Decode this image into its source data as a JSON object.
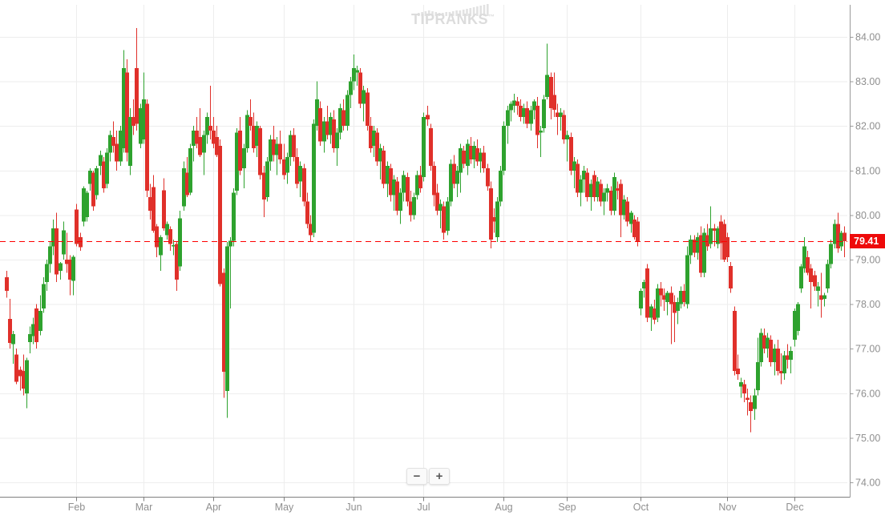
{
  "brand": {
    "name": "TIPRANKS",
    "trademark": "™"
  },
  "controls": {
    "zoom_out_label": "−",
    "zoom_in_label": "+"
  },
  "price_tag": {
    "value": "79.41"
  },
  "colors": {
    "up": "#2ea22e",
    "down": "#e0302a",
    "dashed_line": "#fe0000",
    "tag_bg": "#ee0a0a",
    "grid": "#ededed",
    "axis_bottom": "#808080",
    "axis_right": "#9a9a9a",
    "label": "#8f8f8f",
    "logo": "#e2e2e2"
  },
  "chart_data": {
    "type": "candlestick",
    "title": "",
    "xlabel": "",
    "ylabel": "",
    "ylim": [
      74,
      84
    ],
    "grid": true,
    "legend": "none",
    "y_ticks": [
      84,
      83,
      82,
      81,
      80,
      79,
      78,
      77,
      76,
      75,
      74
    ],
    "x_ticks": [
      "Feb",
      "Mar",
      "Apr",
      "May",
      "Jun",
      "Jul",
      "Aug",
      "Sep",
      "Oct",
      "Nov",
      "Dec"
    ],
    "x_tick_indices": [
      21,
      41,
      62,
      83,
      104,
      125,
      149,
      168,
      190,
      216,
      236
    ],
    "current_price": 79.41,
    "series_format": "[open, high, low, close]",
    "candles": [
      [
        78.6,
        78.75,
        78.15,
        78.3
      ],
      [
        77.67,
        78.12,
        77.0,
        77.13
      ],
      [
        77.1,
        77.4,
        76.66,
        77.33
      ],
      [
        76.87,
        77.0,
        76.2,
        76.26
      ],
      [
        76.53,
        76.6,
        76.06,
        76.38
      ],
      [
        76.5,
        76.87,
        75.95,
        76.1
      ],
      [
        76.0,
        76.8,
        75.66,
        76.74
      ],
      [
        77.15,
        77.5,
        76.9,
        77.33
      ],
      [
        77.28,
        77.7,
        77.1,
        77.55
      ],
      [
        77.9,
        78.0,
        77.0,
        77.15
      ],
      [
        77.4,
        78.2,
        77.3,
        77.85
      ],
      [
        77.9,
        78.6,
        77.8,
        78.45
      ],
      [
        78.5,
        79.0,
        78.3,
        78.9
      ],
      [
        78.9,
        79.4,
        78.7,
        79.3
      ],
      [
        79.3,
        79.9,
        79.1,
        79.7
      ],
      [
        79.7,
        80.05,
        78.5,
        78.67
      ],
      [
        78.75,
        78.95,
        78.55,
        78.92
      ],
      [
        79.12,
        79.85,
        79.0,
        79.66
      ],
      [
        79.0,
        79.6,
        78.7,
        78.9
      ],
      [
        79.0,
        79.1,
        78.2,
        78.55
      ],
      [
        78.52,
        79.1,
        78.2,
        79.06
      ],
      [
        80.12,
        80.25,
        79.3,
        79.35
      ],
      [
        79.5,
        79.6,
        79.2,
        79.28
      ],
      [
        79.85,
        80.65,
        79.75,
        80.6
      ],
      [
        79.95,
        80.55,
        79.85,
        80.5
      ],
      [
        80.7,
        81.05,
        80.55,
        81.0
      ],
      [
        80.95,
        81.0,
        80.1,
        80.2
      ],
      [
        80.45,
        81.1,
        80.35,
        81.05
      ],
      [
        81.1,
        81.45,
        80.9,
        81.35
      ],
      [
        81.2,
        81.3,
        80.5,
        80.6
      ],
      [
        80.7,
        81.5,
        80.6,
        81.4
      ],
      [
        81.4,
        81.9,
        81.2,
        81.8
      ],
      [
        81.75,
        82.1,
        81.4,
        81.55
      ],
      [
        81.6,
        81.9,
        81.0,
        81.2
      ],
      [
        81.2,
        82.0,
        81.1,
        81.9
      ],
      [
        81.5,
        83.7,
        81.4,
        83.3
      ],
      [
        83.2,
        83.5,
        81.2,
        81.4
      ],
      [
        81.1,
        82.4,
        80.9,
        82.2
      ],
      [
        82.2,
        82.6,
        81.8,
        82.0
      ],
      [
        83.3,
        84.2,
        81.9,
        82.05
      ],
      [
        81.6,
        82.5,
        81.5,
        82.4
      ],
      [
        81.7,
        83.2,
        81.6,
        82.6
      ],
      [
        82.5,
        82.6,
        80.4,
        80.55
      ],
      [
        80.4,
        80.7,
        79.9,
        80.1
      ],
      [
        80.63,
        80.9,
        79.6,
        79.65
      ],
      [
        79.75,
        79.8,
        79.05,
        79.28
      ],
      [
        79.1,
        79.55,
        78.75,
        79.5
      ],
      [
        80.56,
        80.83,
        79.65,
        79.7
      ],
      [
        79.55,
        79.85,
        79.45,
        79.8
      ],
      [
        79.68,
        79.75,
        79.2,
        79.35
      ],
      [
        79.3,
        79.45,
        79.1,
        79.32
      ],
      [
        79.35,
        79.4,
        78.3,
        78.55
      ],
      [
        78.85,
        80.1,
        78.75,
        79.93
      ],
      [
        80.2,
        81.2,
        80.1,
        81.05
      ],
      [
        80.95,
        81.3,
        80.4,
        80.45
      ],
      [
        80.5,
        81.6,
        80.45,
        81.5
      ],
      [
        81.55,
        82.0,
        81.2,
        81.9
      ],
      [
        81.9,
        82.2,
        81.5,
        81.6
      ],
      [
        81.75,
        82.4,
        81.3,
        81.35
      ],
      [
        81.4,
        81.9,
        80.9,
        81.8
      ],
      [
        81.8,
        82.3,
        81.6,
        82.2
      ],
      [
        82.0,
        82.9,
        81.7,
        81.9
      ],
      [
        81.9,
        82.2,
        81.5,
        81.6
      ],
      [
        81.75,
        82.0,
        81.3,
        81.35
      ],
      [
        81.55,
        81.7,
        78.4,
        78.45
      ],
      [
        78.7,
        78.8,
        75.9,
        76.48
      ],
      [
        76.05,
        79.4,
        75.45,
        79.3
      ],
      [
        79.3,
        79.5,
        77.9,
        79.42
      ],
      [
        79.42,
        80.6,
        79.3,
        80.5
      ],
      [
        80.55,
        81.95,
        80.45,
        81.85
      ],
      [
        81.9,
        82.2,
        80.9,
        81.0
      ],
      [
        81.05,
        81.6,
        80.6,
        81.5
      ],
      [
        81.5,
        82.35,
        81.4,
        82.25
      ],
      [
        82.2,
        82.6,
        81.9,
        82.0
      ],
      [
        82.0,
        82.3,
        81.4,
        81.5
      ],
      [
        81.55,
        82.1,
        81.3,
        82.0
      ],
      [
        81.95,
        82.0,
        80.8,
        80.9
      ],
      [
        80.95,
        81.1,
        79.95,
        80.35
      ],
      [
        80.4,
        81.3,
        80.3,
        81.2
      ],
      [
        81.2,
        81.8,
        81.0,
        81.7
      ],
      [
        81.7,
        82.0,
        81.2,
        81.35
      ],
      [
        81.35,
        81.75,
        80.9,
        81.6
      ],
      [
        81.6,
        81.9,
        81.15,
        81.25
      ],
      [
        81.25,
        81.6,
        80.8,
        80.9
      ],
      [
        80.95,
        81.4,
        80.7,
        81.3
      ],
      [
        81.3,
        81.9,
        81.1,
        81.8
      ],
      [
        81.8,
        81.95,
        81.2,
        81.3
      ],
      [
        81.3,
        81.5,
        80.6,
        80.7
      ],
      [
        80.75,
        81.2,
        80.4,
        81.1
      ],
      [
        81.05,
        81.15,
        80.2,
        80.3
      ],
      [
        80.3,
        80.5,
        79.7,
        79.8
      ],
      [
        79.8,
        80.0,
        79.4,
        79.55
      ],
      [
        79.6,
        82.15,
        79.5,
        82.05
      ],
      [
        82.0,
        83.0,
        81.9,
        82.6
      ],
      [
        82.4,
        82.55,
        81.55,
        81.65
      ],
      [
        81.65,
        82.2,
        81.4,
        82.1
      ],
      [
        82.1,
        82.45,
        81.7,
        81.8
      ],
      [
        81.8,
        82.3,
        81.6,
        82.2
      ],
      [
        82.15,
        82.35,
        81.4,
        81.5
      ],
      [
        81.5,
        81.95,
        81.1,
        81.85
      ],
      [
        81.85,
        82.5,
        81.7,
        82.4
      ],
      [
        82.35,
        82.6,
        81.9,
        82.0
      ],
      [
        82.0,
        82.8,
        81.9,
        82.7
      ],
      [
        82.7,
        83.1,
        82.4,
        83.0
      ],
      [
        83.0,
        83.6,
        82.8,
        83.3
      ],
      [
        83.2,
        83.35,
        82.9,
        83.25
      ],
      [
        83.2,
        83.3,
        82.4,
        82.5
      ],
      [
        82.5,
        82.9,
        82.1,
        82.8
      ],
      [
        82.75,
        82.85,
        81.9,
        82.0
      ],
      [
        82.0,
        82.2,
        81.4,
        81.5
      ],
      [
        81.55,
        82.0,
        81.3,
        81.9
      ],
      [
        81.85,
        81.95,
        81.1,
        81.2
      ],
      [
        81.2,
        81.6,
        80.8,
        81.5
      ],
      [
        81.45,
        81.55,
        80.6,
        80.7
      ],
      [
        80.7,
        81.2,
        80.4,
        81.1
      ],
      [
        81.05,
        81.15,
        80.3,
        80.45
      ],
      [
        80.45,
        80.9,
        80.1,
        80.8
      ],
      [
        80.75,
        80.85,
        80.0,
        80.1
      ],
      [
        80.1,
        80.6,
        79.8,
        80.5
      ],
      [
        80.5,
        81.0,
        80.3,
        80.9
      ],
      [
        80.85,
        80.95,
        80.2,
        80.3
      ],
      [
        80.3,
        80.55,
        79.85,
        80.0
      ],
      [
        80.0,
        80.5,
        79.9,
        80.4
      ],
      [
        80.45,
        81.0,
        80.35,
        80.9
      ],
      [
        80.9,
        81.1,
        80.5,
        80.6
      ],
      [
        80.85,
        82.3,
        80.75,
        82.2
      ],
      [
        82.25,
        82.45,
        82.0,
        82.15
      ],
      [
        81.95,
        82.05,
        81.0,
        81.1
      ],
      [
        81.1,
        81.2,
        80.2,
        80.45
      ],
      [
        80.5,
        80.7,
        80.0,
        80.1
      ],
      [
        80.1,
        80.35,
        79.7,
        80.25
      ],
      [
        80.2,
        80.3,
        79.45,
        79.6
      ],
      [
        79.65,
        80.4,
        79.55,
        80.3
      ],
      [
        80.3,
        81.25,
        80.2,
        81.15
      ],
      [
        81.15,
        81.35,
        80.6,
        80.7
      ],
      [
        80.7,
        81.1,
        80.4,
        81.0
      ],
      [
        80.95,
        81.6,
        80.5,
        81.5
      ],
      [
        81.45,
        81.55,
        81.05,
        81.15
      ],
      [
        81.1,
        81.7,
        80.9,
        81.6
      ],
      [
        81.55,
        81.75,
        81.15,
        81.25
      ],
      [
        81.25,
        81.65,
        81.05,
        81.55
      ],
      [
        81.5,
        81.7,
        81.1,
        81.2
      ],
      [
        81.2,
        81.5,
        80.95,
        81.4
      ],
      [
        81.4,
        81.55,
        80.95,
        81.05
      ],
      [
        81.05,
        81.15,
        80.55,
        80.65
      ],
      [
        80.6,
        80.75,
        79.25,
        79.45
      ],
      [
        79.95,
        80.15,
        79.6,
        79.85
      ],
      [
        79.5,
        80.4,
        79.4,
        80.3
      ],
      [
        80.3,
        81.1,
        80.2,
        81.0
      ],
      [
        81.0,
        82.1,
        80.9,
        82.0
      ],
      [
        82.0,
        82.45,
        81.6,
        82.35
      ],
      [
        82.35,
        82.55,
        82.1,
        82.5
      ],
      [
        82.45,
        82.72,
        82.3,
        82.57
      ],
      [
        82.55,
        82.65,
        82.25,
        82.45
      ],
      [
        82.45,
        82.6,
        82.1,
        82.2
      ],
      [
        82.2,
        82.5,
        82.05,
        82.4
      ],
      [
        82.4,
        82.55,
        81.95,
        82.05
      ],
      [
        82.05,
        82.45,
        81.9,
        82.35
      ],
      [
        82.35,
        82.6,
        82.15,
        82.55
      ],
      [
        82.45,
        82.65,
        81.5,
        81.8
      ],
      [
        81.85,
        82.0,
        81.3,
        81.9
      ],
      [
        81.95,
        82.7,
        81.85,
        82.6
      ],
      [
        82.65,
        83.85,
        82.6,
        83.15
      ],
      [
        83.1,
        83.2,
        82.15,
        82.4
      ],
      [
        82.7,
        83.2,
        82.2,
        82.36
      ],
      [
        82.3,
        82.5,
        81.8,
        82.2
      ],
      [
        82.2,
        82.4,
        81.9,
        82.3
      ],
      [
        82.25,
        82.35,
        81.6,
        81.7
      ],
      [
        81.7,
        81.9,
        81.2,
        81.8
      ],
      [
        81.75,
        81.85,
        80.9,
        81.0
      ],
      [
        81.0,
        81.3,
        80.6,
        81.2
      ],
      [
        81.15,
        81.25,
        80.4,
        80.5
      ],
      [
        80.5,
        80.9,
        80.2,
        80.8
      ],
      [
        80.8,
        81.1,
        80.5,
        81.0
      ],
      [
        80.95,
        81.05,
        80.3,
        80.4
      ],
      [
        80.4,
        80.8,
        80.1,
        80.7
      ],
      [
        80.9,
        81.0,
        80.3,
        80.4
      ],
      [
        80.4,
        80.85,
        80.3,
        80.75
      ],
      [
        80.7,
        80.8,
        80.2,
        80.3
      ],
      [
        80.3,
        80.6,
        80.0,
        80.5
      ],
      [
        80.5,
        80.7,
        80.3,
        80.6
      ],
      [
        80.55,
        80.65,
        80.0,
        80.1
      ],
      [
        80.1,
        80.95,
        80.0,
        80.85
      ],
      [
        80.6,
        80.75,
        80.35,
        80.55
      ],
      [
        80.7,
        80.8,
        79.5,
        80.0
      ],
      [
        80.0,
        80.45,
        79.9,
        80.35
      ],
      [
        80.3,
        80.4,
        79.75,
        79.85
      ],
      [
        79.8,
        80.1,
        79.6,
        80.05
      ],
      [
        79.9,
        80.0,
        79.45,
        79.5
      ],
      [
        79.85,
        79.95,
        79.3,
        79.4
      ],
      [
        77.9,
        78.35,
        77.75,
        78.3
      ],
      [
        78.35,
        78.55,
        78.15,
        78.5
      ],
      [
        78.8,
        78.9,
        77.6,
        77.7
      ],
      [
        77.7,
        78.0,
        77.4,
        77.95
      ],
      [
        77.9,
        78.1,
        77.55,
        77.65
      ],
      [
        77.7,
        78.45,
        77.6,
        78.35
      ],
      [
        78.35,
        78.5,
        77.95,
        78.2
      ],
      [
        78.2,
        78.35,
        77.85,
        78.1
      ],
      [
        78.05,
        78.3,
        77.75,
        78.25
      ],
      [
        78.25,
        78.4,
        77.1,
        78.0
      ],
      [
        78.05,
        78.2,
        77.15,
        77.8
      ],
      [
        77.85,
        78.15,
        77.55,
        78.05
      ],
      [
        78.0,
        78.4,
        77.9,
        78.3
      ],
      [
        78.3,
        78.45,
        77.95,
        78.05
      ],
      [
        78.0,
        79.3,
        77.9,
        79.1
      ],
      [
        79.1,
        79.55,
        78.9,
        79.45
      ],
      [
        79.45,
        79.55,
        79.05,
        79.15
      ],
      [
        79.15,
        79.6,
        79.0,
        79.5
      ],
      [
        79.55,
        79.75,
        78.6,
        78.7
      ],
      [
        78.7,
        79.7,
        78.6,
        79.6
      ],
      [
        79.55,
        79.8,
        79.2,
        79.3
      ],
      [
        79.35,
        80.2,
        79.25,
        79.7
      ],
      [
        79.7,
        79.8,
        79.3,
        79.65
      ],
      [
        79.35,
        79.75,
        79.25,
        79.7
      ],
      [
        79.85,
        80.0,
        79.0,
        79.37
      ],
      [
        79.8,
        79.9,
        78.95,
        79.0
      ],
      [
        79.5,
        79.6,
        78.95,
        79.05
      ],
      [
        78.86,
        78.95,
        78.25,
        78.35
      ],
      [
        77.85,
        77.95,
        76.4,
        76.5
      ],
      [
        76.55,
        76.87,
        76.3,
        76.43
      ],
      [
        76.15,
        76.35,
        75.9,
        76.25
      ],
      [
        76.2,
        76.3,
        75.8,
        76.0
      ],
      [
        75.9,
        76.1,
        75.5,
        75.85
      ],
      [
        75.8,
        75.95,
        75.12,
        75.6
      ],
      [
        75.65,
        76.1,
        75.4,
        75.95
      ],
      [
        76.07,
        77.25,
        75.95,
        76.7
      ],
      [
        76.7,
        77.45,
        76.6,
        77.35
      ],
      [
        77.3,
        77.45,
        76.9,
        77.0
      ],
      [
        77.0,
        77.35,
        76.8,
        77.25
      ],
      [
        77.2,
        77.3,
        76.6,
        76.7
      ],
      [
        76.7,
        77.1,
        76.4,
        77.0
      ],
      [
        77.0,
        77.2,
        76.4,
        76.5
      ],
      [
        76.5,
        76.9,
        76.2,
        76.45
      ],
      [
        76.45,
        76.95,
        76.3,
        76.85
      ],
      [
        76.85,
        77.1,
        76.55,
        76.75
      ],
      [
        76.75,
        77.05,
        76.45,
        76.95
      ],
      [
        77.2,
        77.9,
        77.05,
        77.85
      ],
      [
        77.4,
        78.05,
        77.3,
        78.0
      ],
      [
        78.35,
        78.9,
        78.25,
        78.85
      ],
      [
        78.8,
        79.5,
        78.7,
        79.3
      ],
      [
        79.05,
        79.2,
        78.65,
        78.7
      ],
      [
        78.8,
        78.9,
        77.9,
        78.5
      ],
      [
        78.65,
        78.75,
        78.3,
        78.4
      ],
      [
        78.3,
        78.5,
        77.95,
        78.4
      ],
      [
        78.2,
        78.7,
        77.7,
        78.1
      ],
      [
        78.12,
        78.25,
        77.95,
        78.2
      ],
      [
        78.35,
        79.0,
        78.25,
        78.9
      ],
      [
        78.9,
        79.45,
        78.8,
        79.35
      ],
      [
        79.35,
        79.9,
        79.25,
        79.8
      ],
      [
        79.8,
        80.05,
        79.15,
        79.25
      ],
      [
        79.3,
        79.65,
        79.2,
        79.6
      ],
      [
        79.6,
        79.75,
        79.05,
        79.41
      ]
    ]
  }
}
